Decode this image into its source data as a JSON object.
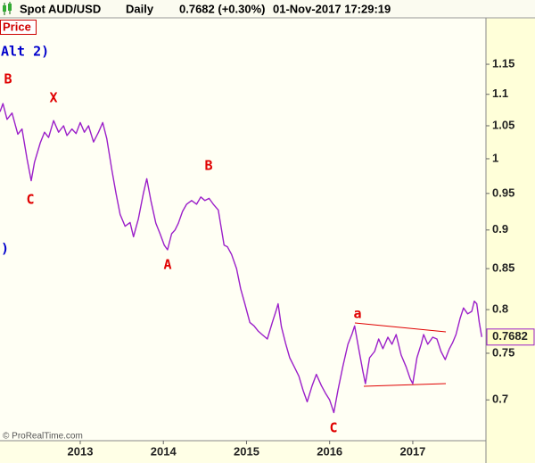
{
  "header": {
    "instrument": "Spot AUD/USD",
    "interval": "Daily",
    "quote": "0.7682 (+0.30%)",
    "timestamp": "01-Nov-2017 17:29:19"
  },
  "panel_label": "Price",
  "footer": "© ProRealTime.com",
  "chart_data": {
    "type": "line",
    "log_scale": true,
    "color": "#9b1fc9",
    "wave_labels": [
      "B",
      "X",
      "C",
      "B",
      "A",
      "C",
      "a"
    ],
    "wave_label_color": "#e00000",
    "notes": [
      "Alt 2)",
      ")"
    ],
    "note_color": "#0000cc",
    "last_value": 0.7682,
    "xlim": [
      2012.035,
      2017.88
    ],
    "xticks": [
      2013,
      2014,
      2015,
      2016,
      2017
    ],
    "ylim": [
      0.659,
      1.235
    ],
    "yticks": [
      0.7,
      0.75,
      0.8,
      0.85,
      0.9,
      0.95,
      1,
      1.05,
      1.1,
      1.15
    ],
    "x": [
      2012.035,
      2012.07,
      2012.12,
      2012.18,
      2012.25,
      2012.3,
      2012.36,
      2012.41,
      2012.45,
      2012.52,
      2012.57,
      2012.62,
      2012.68,
      2012.74,
      2012.8,
      2012.84,
      2012.9,
      2012.95,
      2013.0,
      2013.05,
      2013.1,
      2013.16,
      2013.22,
      2013.27,
      2013.32,
      2013.38,
      2013.43,
      2013.48,
      2013.54,
      2013.6,
      2013.64,
      2013.7,
      2013.76,
      2013.8,
      2013.85,
      2013.91,
      2013.96,
      2014.01,
      2014.05,
      2014.1,
      2014.14,
      2014.18,
      2014.23,
      2014.28,
      2014.34,
      2014.4,
      2014.45,
      2014.5,
      2014.55,
      2014.6,
      2014.66,
      2014.7,
      2014.73,
      2014.77,
      2014.82,
      2014.88,
      2014.93,
      2014.98,
      2015.04,
      2015.09,
      2015.14,
      2015.2,
      2015.25,
      2015.31,
      2015.36,
      2015.38,
      2015.42,
      2015.47,
      2015.52,
      2015.57,
      2015.63,
      2015.68,
      2015.73,
      2015.79,
      2015.84,
      2015.9,
      2015.95,
      2016.0,
      2016.05,
      2016.1,
      2016.16,
      2016.22,
      2016.27,
      2016.3,
      2016.35,
      2016.4,
      2016.43,
      2016.48,
      2016.54,
      2016.59,
      2016.64,
      2016.7,
      2016.75,
      2016.8,
      2016.86,
      2016.92,
      2016.97,
      2017.0,
      2017.05,
      2017.1,
      2017.13,
      2017.18,
      2017.24,
      2017.29,
      2017.34,
      2017.39,
      2017.44,
      2017.48,
      2017.52,
      2017.57,
      2017.61,
      2017.66,
      2017.71,
      2017.74,
      2017.77,
      2017.8,
      2017.83
    ],
    "values": [
      1.072,
      1.085,
      1.06,
      1.07,
      1.037,
      1.045,
      1.0,
      0.968,
      0.995,
      1.024,
      1.04,
      1.032,
      1.058,
      1.04,
      1.05,
      1.035,
      1.045,
      1.038,
      1.055,
      1.04,
      1.05,
      1.025,
      1.04,
      1.055,
      1.03,
      0.984,
      0.95,
      0.921,
      0.905,
      0.91,
      0.891,
      0.915,
      0.95,
      0.971,
      0.94,
      0.909,
      0.895,
      0.88,
      0.874,
      0.895,
      0.9,
      0.909,
      0.925,
      0.935,
      0.94,
      0.935,
      0.945,
      0.94,
      0.943,
      0.935,
      0.927,
      0.9,
      0.88,
      0.878,
      0.868,
      0.85,
      0.825,
      0.807,
      0.785,
      0.781,
      0.775,
      0.77,
      0.766,
      0.785,
      0.8,
      0.807,
      0.78,
      0.761,
      0.745,
      0.736,
      0.725,
      0.71,
      0.698,
      0.715,
      0.727,
      0.715,
      0.707,
      0.7,
      0.687,
      0.71,
      0.736,
      0.76,
      0.772,
      0.781,
      0.755,
      0.73,
      0.717,
      0.745,
      0.752,
      0.766,
      0.755,
      0.768,
      0.76,
      0.771,
      0.748,
      0.735,
      0.722,
      0.717,
      0.745,
      0.76,
      0.771,
      0.76,
      0.768,
      0.766,
      0.752,
      0.743,
      0.755,
      0.762,
      0.771,
      0.79,
      0.802,
      0.795,
      0.798,
      0.81,
      0.807,
      0.785,
      0.7682
    ]
  }
}
